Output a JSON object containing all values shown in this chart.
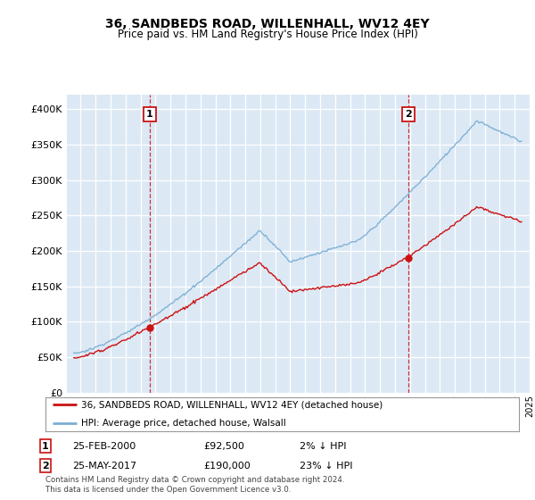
{
  "title": "36, SANDBEDS ROAD, WILLENHALL, WV12 4EY",
  "subtitle": "Price paid vs. HM Land Registry's House Price Index (HPI)",
  "ylim": [
    0,
    420000
  ],
  "yticks": [
    0,
    50000,
    100000,
    150000,
    200000,
    250000,
    300000,
    350000,
    400000
  ],
  "background_color": "#ffffff",
  "chart_bg_color": "#dce9f5",
  "grid_color": "#ffffff",
  "hpi_color": "#7bafd4",
  "price_color": "#cc1111",
  "transaction1": {
    "date": "25-FEB-2000",
    "price": 92500,
    "label": "1",
    "year": 2000.12
  },
  "transaction2": {
    "date": "25-MAY-2017",
    "price": 190000,
    "label": "2",
    "year": 2017.38
  },
  "legend_label1": "36, SANDBEDS ROAD, WILLENHALL, WV12 4EY (detached house)",
  "legend_label2": "HPI: Average price, detached house, Walsall",
  "footnote": "Contains HM Land Registry data © Crown copyright and database right 2024.\nThis data is licensed under the Open Government Licence v3.0.",
  "table_row1": [
    "1",
    "25-FEB-2000",
    "£92,500",
    "2% ↓ HPI"
  ],
  "table_row2": [
    "2",
    "25-MAY-2017",
    "£190,000",
    "23% ↓ HPI"
  ],
  "xlim_left": 1994.58,
  "xlim_right": 2025.5
}
